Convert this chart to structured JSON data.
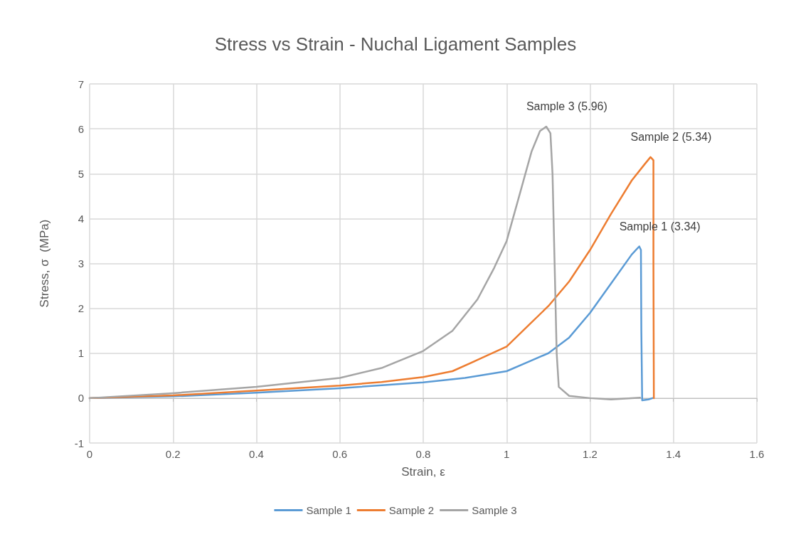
{
  "chart_data": {
    "type": "line",
    "title": "Stress vs Strain - Nuchal Ligament Samples",
    "xlabel": "Strain, ε",
    "ylabel": "Stress, σ  (MPa)",
    "xlim": [
      0,
      1.6
    ],
    "xticks": [
      0,
      0.2,
      0.4,
      0.6,
      0.8,
      1,
      1.2,
      1.4,
      1.6
    ],
    "ylim": [
      -1,
      7
    ],
    "yticks": [
      -1,
      0,
      1,
      2,
      3,
      4,
      5,
      6,
      7
    ],
    "grid": true,
    "legend": "bottom",
    "marker": "none",
    "line_style": "solid",
    "series": [
      {
        "name": "Sample 1",
        "color": "#5b9bd5",
        "x": [
          0,
          0.2,
          0.4,
          0.6,
          0.8,
          0.9,
          1.0,
          1.05,
          1.1,
          1.15,
          1.2,
          1.25,
          1.3,
          1.318,
          1.322,
          1.323,
          1.325,
          1.34,
          1.35
        ],
        "values": [
          0,
          0.04,
          0.12,
          0.22,
          0.35,
          0.45,
          0.6,
          0.8,
          1.0,
          1.35,
          1.9,
          2.55,
          3.2,
          3.38,
          3.3,
          1.5,
          -0.05,
          -0.03,
          0
        ]
      },
      {
        "name": "Sample 2",
        "color": "#ed7d31",
        "x": [
          0,
          0.2,
          0.4,
          0.6,
          0.7,
          0.8,
          0.87,
          0.93,
          1.0,
          1.05,
          1.1,
          1.15,
          1.2,
          1.25,
          1.3,
          1.33,
          1.345,
          1.352,
          1.352,
          1.353
        ],
        "values": [
          0,
          0.06,
          0.17,
          0.28,
          0.36,
          0.47,
          0.6,
          0.85,
          1.15,
          1.6,
          2.05,
          2.6,
          3.3,
          4.1,
          4.85,
          5.2,
          5.37,
          5.3,
          3,
          0
        ]
      },
      {
        "name": "Sample 3",
        "color": "#a5a5a5",
        "x": [
          0,
          0.2,
          0.4,
          0.6,
          0.7,
          0.8,
          0.87,
          0.93,
          0.97,
          1.0,
          1.03,
          1.06,
          1.08,
          1.095,
          1.105,
          1.11,
          1.115,
          1.12,
          1.125,
          1.15,
          1.2,
          1.25,
          1.32
        ],
        "values": [
          0,
          0.11,
          0.25,
          0.45,
          0.67,
          1.05,
          1.5,
          2.2,
          2.9,
          3.5,
          4.5,
          5.5,
          5.95,
          6.05,
          5.9,
          5,
          3,
          1,
          0.25,
          0.05,
          0,
          -0.03,
          0.01
        ]
      }
    ],
    "annotations": [
      {
        "text": "Sample 1 (3.34)",
        "x": 1.318,
        "y": 3.38
      },
      {
        "text": "Sample 2 (5.34)",
        "x": 1.345,
        "y": 5.37
      },
      {
        "text": "Sample 3 (5.96)",
        "x": 1.095,
        "y": 6.05
      }
    ]
  }
}
